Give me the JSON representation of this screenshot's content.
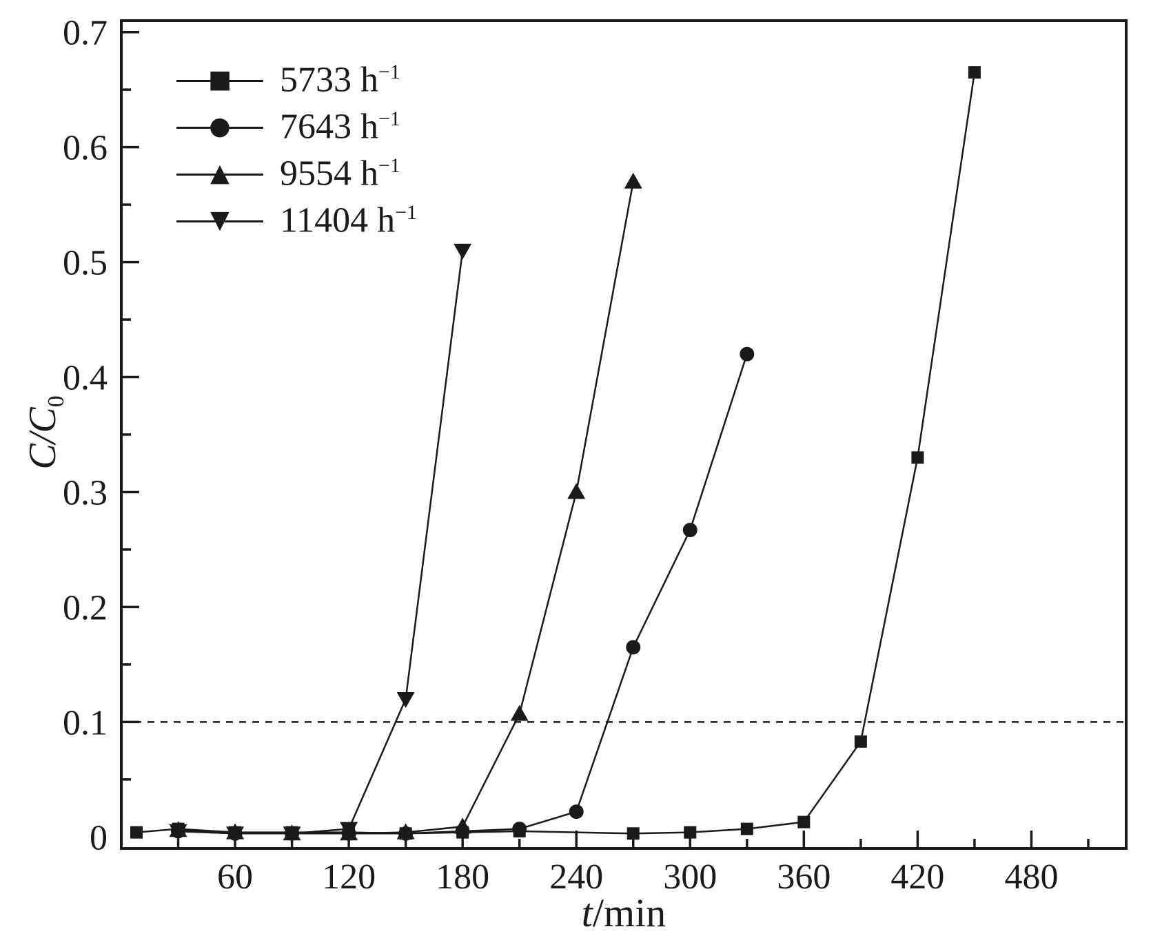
{
  "chart_data": {
    "type": "line",
    "title": "",
    "xlabel_italic": "t",
    "xlabel_rest": "/min",
    "ylabel_main": "C/C",
    "ylabel_sub": "0",
    "xlim": [
      0,
      530
    ],
    "ylim": [
      -0.01,
      0.71
    ],
    "xticks": [
      60,
      120,
      180,
      240,
      300,
      360,
      420,
      480
    ],
    "xtick_labels": [
      "60",
      "120",
      "180",
      "240",
      "300",
      "360",
      "420",
      "480"
    ],
    "x_minor_step": 30,
    "yticks": [
      0,
      0.1,
      0.2,
      0.3,
      0.4,
      0.5,
      0.6,
      0.7
    ],
    "ytick_labels": [
      "0",
      "0.1",
      "0.2",
      "0.3",
      "0.4",
      "0.5",
      "0.6",
      "0.7"
    ],
    "y_minor_step": 0.05,
    "threshold_line_y": 0.1,
    "grid": false,
    "legend_position": "upper-left",
    "axis_color": "#1a1a1a",
    "legend": [
      {
        "label": "5733 h",
        "sup": "−1",
        "glyph": "■",
        "marker": "square"
      },
      {
        "label": "7643 h",
        "sup": "−1",
        "glyph": "●",
        "marker": "circle"
      },
      {
        "label": "9554 h",
        "sup": "−1",
        "glyph": "▲",
        "marker": "triangle-up"
      },
      {
        "label": "11404 h",
        "sup": "−1",
        "glyph": "▼",
        "marker": "triangle-down"
      }
    ],
    "series": [
      {
        "name": "5733 h−1",
        "marker": "square",
        "x": [
          8,
          30,
          60,
          90,
          120,
          150,
          180,
          210,
          270,
          300,
          330,
          360,
          390,
          420,
          450
        ],
        "y": [
          0.004,
          0.007,
          0.004,
          0.004,
          0.004,
          0.003,
          0.004,
          0.005,
          0.003,
          0.004,
          0.007,
          0.013,
          0.083,
          0.33,
          0.665
        ]
      },
      {
        "name": "7643 h−1",
        "marker": "circle",
        "x": [
          30,
          60,
          90,
          120,
          150,
          180,
          210,
          240,
          270,
          300,
          330
        ],
        "y": [
          0.005,
          0.003,
          0.003,
          0.003,
          0.003,
          0.005,
          0.007,
          0.022,
          0.165,
          0.267,
          0.42
        ]
      },
      {
        "name": "9554 h−1",
        "marker": "triangle-up",
        "x": [
          30,
          60,
          90,
          120,
          150,
          180,
          210,
          240,
          270
        ],
        "y": [
          0.006,
          0.004,
          0.003,
          0.003,
          0.004,
          0.009,
          0.107,
          0.3,
          0.57
        ]
      },
      {
        "name": "11404 h−1",
        "marker": "triangle-down",
        "x": [
          30,
          60,
          90,
          120,
          150,
          180
        ],
        "y": [
          0.005,
          0.003,
          0.003,
          0.007,
          0.12,
          0.51
        ]
      }
    ]
  }
}
